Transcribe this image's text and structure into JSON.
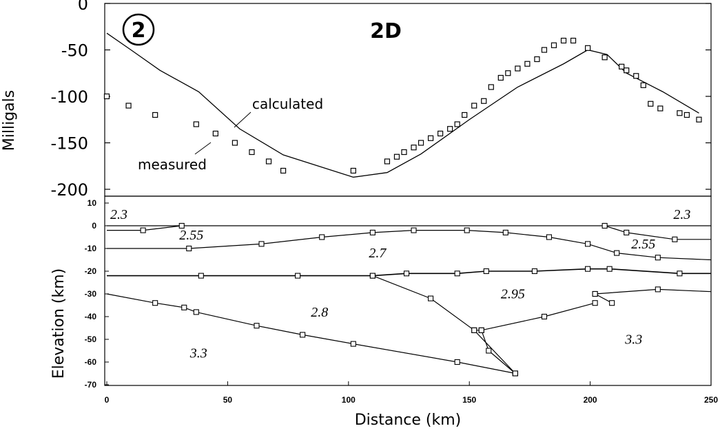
{
  "chart_data": [
    {
      "type": "line",
      "panel": "gravity",
      "title": "2D",
      "panel_label": "2",
      "ylabel": "Milligals",
      "ylim": [
        -200,
        0
      ],
      "xlim": [
        0,
        250
      ],
      "yticks": [
        "0",
        "-50",
        "-100",
        "-150",
        "-200"
      ],
      "ytick_values": [
        0,
        -50,
        -100,
        -150,
        -200
      ],
      "annotations": {
        "calculated": "calculated",
        "measured": "measured"
      },
      "series": [
        {
          "name": "calculated",
          "x": [
            0,
            10,
            22,
            38,
            55,
            73,
            102,
            116,
            130,
            150,
            170,
            189,
            199,
            207,
            215,
            230,
            245
          ],
          "y": [
            -32,
            -50,
            -72,
            -95,
            -135,
            -163,
            -187,
            -182,
            -162,
            -125,
            -90,
            -65,
            -50,
            -55,
            -75,
            -95,
            -118
          ]
        },
        {
          "name": "measured",
          "x": [
            0,
            9,
            20,
            37,
            45,
            53,
            60,
            67,
            73,
            102,
            116,
            120,
            123,
            127,
            130,
            134,
            138,
            142,
            145,
            148,
            152,
            156,
            159,
            163,
            166,
            170,
            174,
            178,
            181,
            185,
            189,
            193,
            199,
            206,
            213,
            215,
            219,
            222,
            225,
            229,
            237,
            240,
            245
          ],
          "y": [
            -100,
            -110,
            -120,
            -130,
            -140,
            -150,
            -160,
            -170,
            -180,
            -180,
            -170,
            -165,
            -160,
            -155,
            -150,
            -145,
            -140,
            -135,
            -130,
            -120,
            -110,
            -105,
            -90,
            -80,
            -75,
            -70,
            -65,
            -60,
            -50,
            -45,
            -40,
            -40,
            -48,
            -58,
            -68,
            -72,
            -78,
            -88,
            -108,
            -113,
            -118,
            -120,
            -125
          ]
        }
      ]
    },
    {
      "type": "line",
      "panel": "density-model",
      "xlabel": "Distance (km)",
      "ylabel": "Elevation (km)",
      "xlim": [
        0,
        250
      ],
      "ylim": [
        -70,
        10
      ],
      "xticks": [
        "0",
        "50",
        "100",
        "150",
        "200",
        "250"
      ],
      "xtick_values": [
        0,
        50,
        100,
        150,
        200,
        250
      ],
      "yticks": [
        "10",
        "0",
        "-10",
        "-20",
        "-30",
        "-40",
        "-50",
        "-60",
        "-70"
      ],
      "ytick_values": [
        10,
        0,
        -10,
        -20,
        -30,
        -40,
        -50,
        -60,
        -70
      ],
      "densities": [
        {
          "label": "2.3",
          "x": 5,
          "y": 3
        },
        {
          "label": "2.55",
          "x": 35,
          "y": -6
        },
        {
          "label": "2.7",
          "x": 112,
          "y": -14
        },
        {
          "label": "2.95",
          "x": 168,
          "y": -32
        },
        {
          "label": "2.8",
          "x": 88,
          "y": -40
        },
        {
          "label": "3.3",
          "x": 38,
          "y": -58
        },
        {
          "label": "3.3",
          "x": 218,
          "y": -52
        },
        {
          "label": "2.3",
          "x": 238,
          "y": 3
        },
        {
          "label": "2.55",
          "x": 222,
          "y": -10
        }
      ],
      "boundaries": [
        {
          "name": "surface",
          "x": [
            0,
            250
          ],
          "y": [
            0,
            0
          ]
        },
        {
          "name": "basin-west",
          "x": [
            0,
            15,
            31
          ],
          "y": [
            -2,
            -2,
            0
          ]
        },
        {
          "name": "basin-east",
          "x": [
            206,
            215,
            235,
            250
          ],
          "y": [
            0,
            -3,
            -6,
            -6
          ]
        },
        {
          "name": "upper-crust-base",
          "x": [
            0,
            34,
            64,
            89,
            110,
            127,
            149,
            165,
            183,
            199,
            211,
            228,
            250
          ],
          "y": [
            -10,
            -10,
            -8,
            -5,
            -3,
            -2,
            -2,
            -3,
            -5,
            -8,
            -12,
            -14,
            -15
          ]
        },
        {
          "name": "moho-flat",
          "x": [
            0,
            39,
            79,
            110,
            124,
            145,
            157,
            177,
            199,
            208,
            237,
            250
          ],
          "y": [
            -22,
            -22,
            -22,
            -22,
            -21,
            -21,
            -20,
            -20,
            -19,
            -19,
            -21,
            -21
          ]
        },
        {
          "name": "lower-crust-base",
          "x": [
            0,
            20,
            32,
            37,
            62,
            81,
            102,
            145,
            169
          ],
          "y": [
            -30,
            -34,
            -36,
            -38,
            -44,
            -48,
            -52,
            -60,
            -65
          ]
        },
        {
          "name": "slab-top",
          "x": [
            110,
            134,
            152,
            169
          ],
          "y": [
            -22,
            -32,
            -46,
            -65
          ]
        },
        {
          "name": "slab-bottom",
          "x": [
            152,
            155,
            158,
            169
          ],
          "y": [
            -46,
            -46,
            -55,
            -65
          ]
        },
        {
          "name": "upper-boundary",
          "x": [
            155,
            181,
            202
          ],
          "y": [
            -46,
            -40,
            -34
          ]
        },
        {
          "name": "eastern-wedge",
          "x": [
            202,
            228,
            250
          ],
          "y": [
            -30,
            -28,
            -29
          ]
        },
        {
          "name": "eastern-wedge-link",
          "x": [
            202,
            209
          ],
          "y": [
            -30,
            -34
          ]
        }
      ]
    }
  ]
}
